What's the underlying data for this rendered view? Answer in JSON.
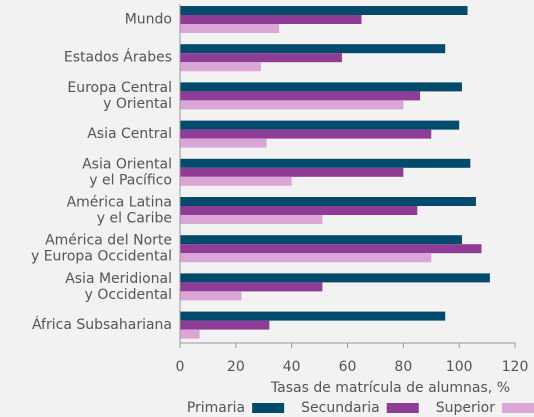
{
  "chart_data": {
    "type": "hbar",
    "categories": [
      "Mundo",
      "Estados Árabes",
      "Europa Central\ny Oriental",
      "Asia Central",
      "Asia Oriental\ny el Pacífico",
      "América Latina\ny el Caribe",
      "América del Norte\ny Europa Occidental",
      "Asia Meridional\ny Occidental",
      "África Subsahariana"
    ],
    "series": [
      {
        "name": "Primaria",
        "color": "#004b6b",
        "values": [
          103,
          95,
          101,
          100,
          104,
          106,
          101,
          111,
          95
        ]
      },
      {
        "name": "Secundaria",
        "color": "#8e3c96",
        "values": [
          65,
          58,
          86,
          90,
          80,
          85,
          108,
          51,
          32
        ]
      },
      {
        "name": "Superior",
        "color": "#d9a6d6",
        "values": [
          35.5,
          29,
          80,
          31,
          40,
          51,
          90,
          22,
          7
        ]
      }
    ],
    "x_label": "Tasas de matrícula de alumnas, %",
    "xlim": [
      0,
      120
    ],
    "xticks": [
      0,
      20,
      40,
      60,
      80,
      100,
      120
    ],
    "legend": "bottom"
  }
}
